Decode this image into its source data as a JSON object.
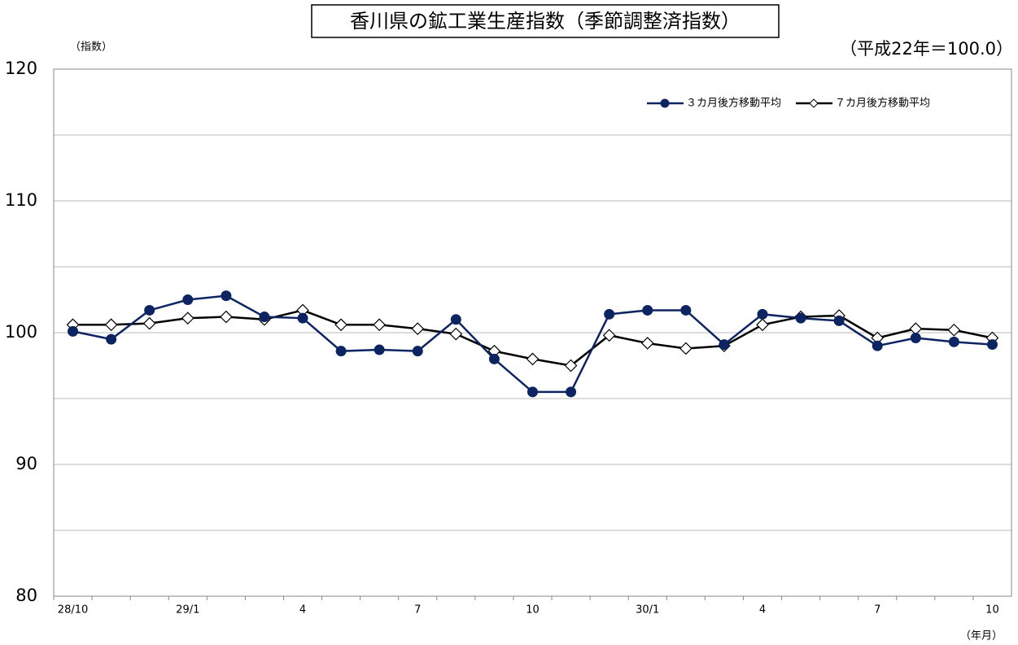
{
  "chart_data": {
    "type": "line",
    "title": "香川県の鉱工業生産指数（季節調整済指数）",
    "y_label": "（指数）",
    "base_note": "（平成22年＝100.0）",
    "x_label": "（年月）",
    "categories": [
      "28/10",
      null,
      null,
      "29/1",
      null,
      null,
      "4",
      null,
      null,
      "7",
      null,
      null,
      "10",
      null,
      null,
      "30/1",
      null,
      null,
      "4",
      null,
      null,
      "7",
      null,
      null,
      "10"
    ],
    "series": [
      {
        "name": "３カ月後方移動平均",
        "color": "#0d2463",
        "marker": "circle",
        "values": [
          100.1,
          99.5,
          101.7,
          102.5,
          102.8,
          101.2,
          101.1,
          98.6,
          98.7,
          98.6,
          101.0,
          98.0,
          95.5,
          95.5,
          101.4,
          101.7,
          101.7,
          99.1,
          101.4,
          101.1,
          100.9,
          99.0,
          99.6,
          99.3,
          99.1
        ]
      },
      {
        "name": "７カ月後方移動平均",
        "color": "#000000",
        "marker": "diamond",
        "values": [
          100.6,
          100.6,
          100.7,
          101.1,
          101.2,
          101.0,
          101.7,
          100.6,
          100.6,
          100.3,
          99.9,
          98.6,
          98.0,
          97.5,
          99.8,
          99.2,
          98.8,
          99.0,
          100.6,
          101.2,
          101.3,
          99.6,
          100.3,
          100.2,
          99.6
        ]
      }
    ],
    "ylim": [
      80,
      120
    ],
    "yticks": [
      80,
      90,
      100,
      110,
      120
    ],
    "minor_yticks": [
      85,
      95,
      105,
      115
    ],
    "grid": true,
    "legend": "upper right"
  }
}
